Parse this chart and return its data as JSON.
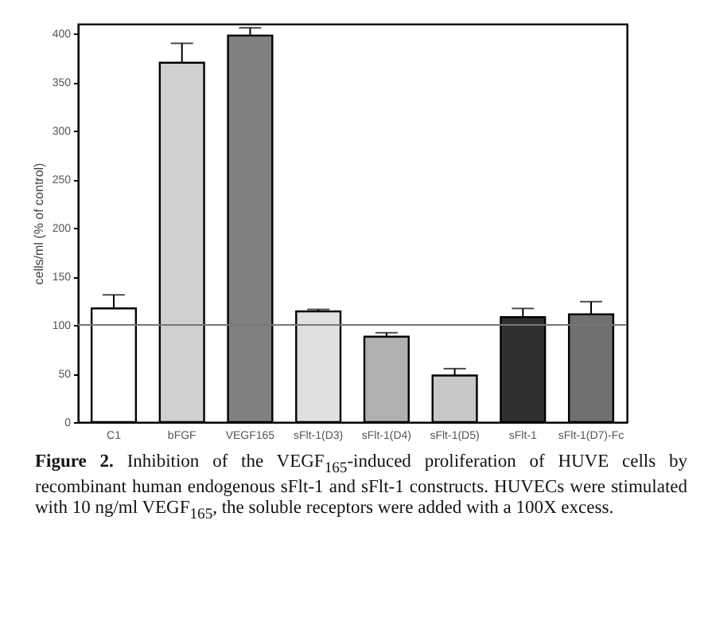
{
  "chart_data": {
    "type": "bar",
    "ylabel": "cells/ml (% of control)",
    "categories": [
      "C1",
      "bFGF",
      "VEGF165",
      "sFlt-1(D3)",
      "sFlt-1(D4)",
      "sFlt-1(D5)",
      "sFlt-1",
      "sFlt-1(D7)-Fc"
    ],
    "values": [
      117,
      370,
      398,
      114,
      88,
      48,
      108,
      111
    ],
    "colors": [
      "#ffffff",
      "#d0d0d0",
      "#808080",
      "#e0e0e0",
      "#b0b0b0",
      "#c8c8c8",
      "#303030",
      "#707070"
    ],
    "errors": [
      [
        117,
        131
      ],
      [
        370,
        390
      ],
      [
        398,
        406
      ],
      [
        114,
        116
      ],
      [
        88,
        92
      ],
      [
        48,
        55
      ],
      [
        108,
        117
      ],
      [
        111,
        124
      ]
    ],
    "ylim": [
      0,
      410
    ],
    "yticks": [
      0,
      50,
      100,
      150,
      200,
      250,
      300,
      350,
      400
    ],
    "grid": false,
    "ref_lines": [
      {
        "axis": "y",
        "value": 100,
        "color": "#777777"
      }
    ],
    "annotations": [
      "Figure 2.",
      "Inhibition of the VEGF$_{165}$-induced proliferation of HUVE cells by recombinant human endogenous sFlt-1 and sFlt-1 constructs. HUVECs were stimulated with 10 ng/ml VEGF$_{165}$, the soluble receptors were added with a 100X excess."
    ]
  }
}
